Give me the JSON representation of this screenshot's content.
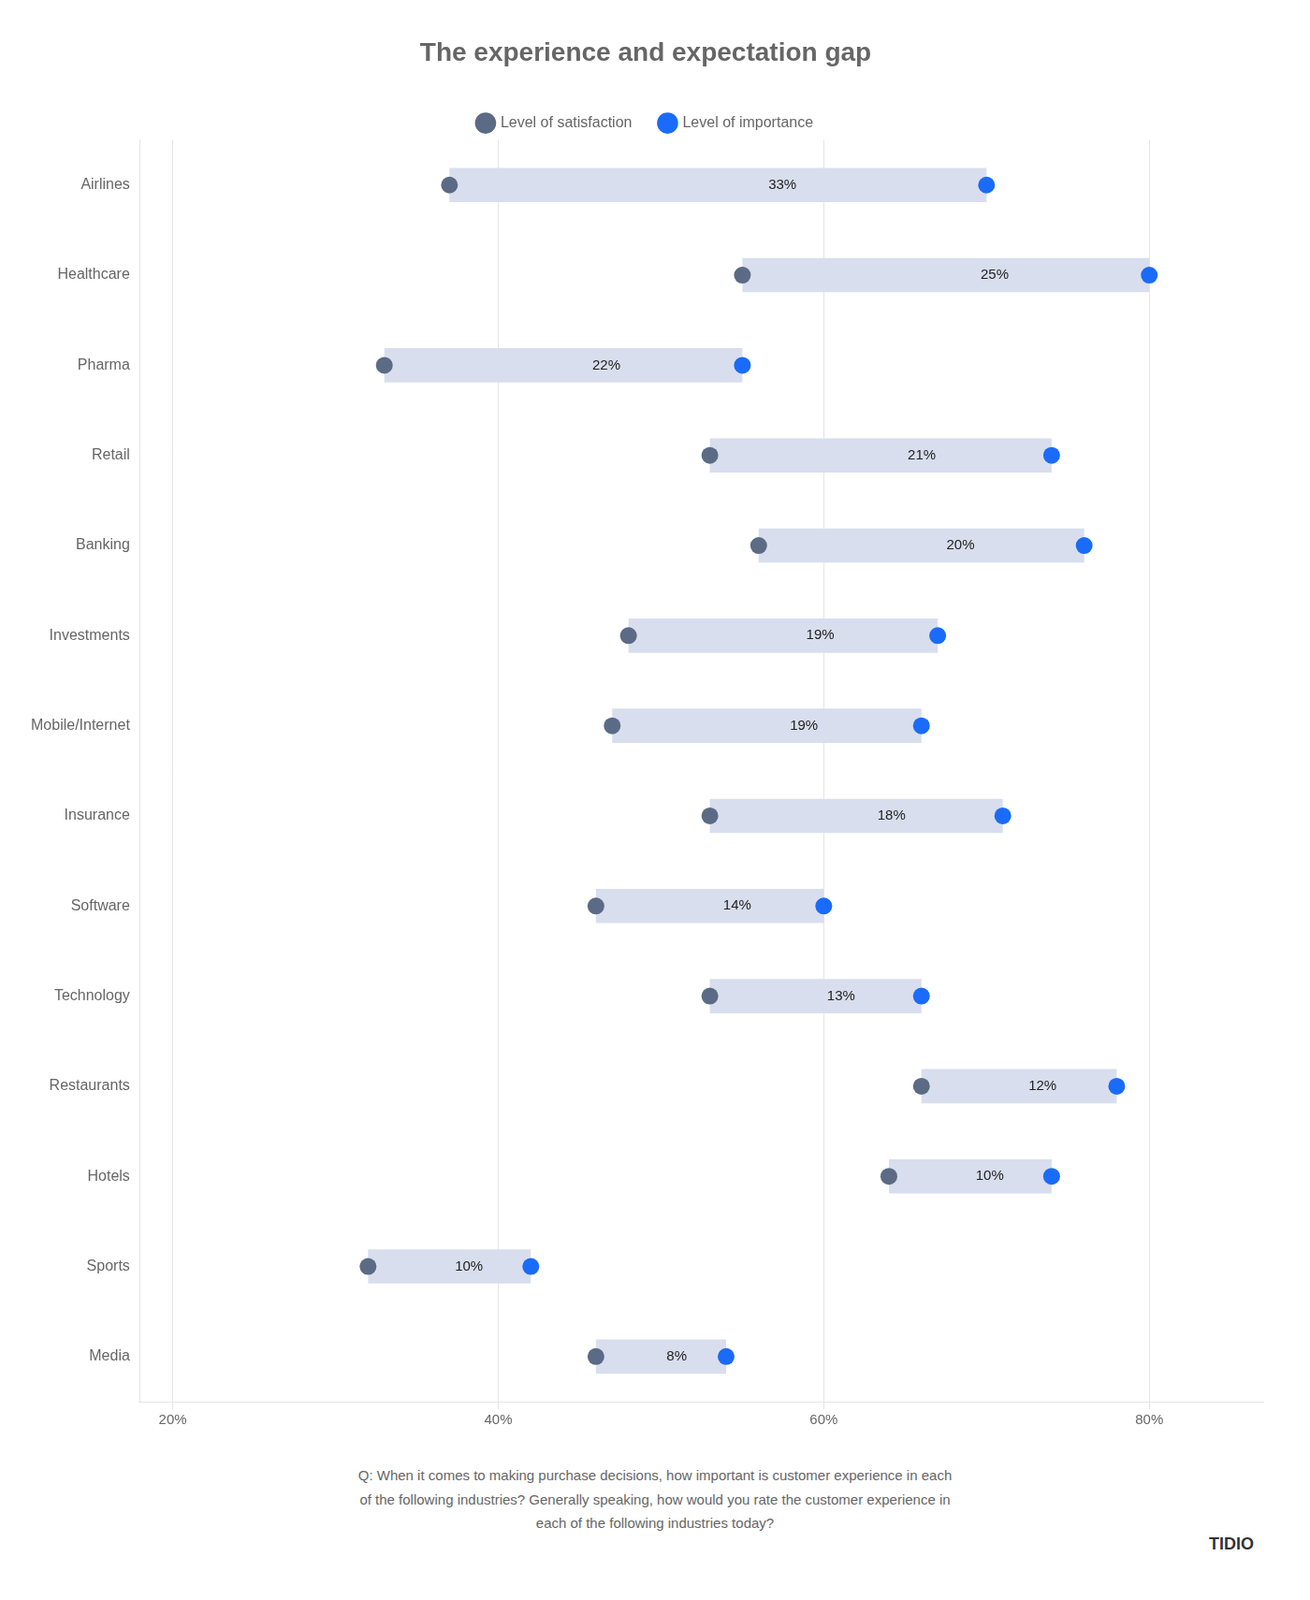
{
  "chart_data": {
    "type": "dumbbell",
    "title": "The experience and expectation gap",
    "orientation": "horizontal",
    "categories": [
      "Airlines",
      "Healthcare",
      "Pharma",
      "Retail",
      "Banking",
      "Investments",
      "Mobile/Internet",
      "Insurance",
      "Software",
      "Technology",
      "Restaurants",
      "Hotels",
      "Sports",
      "Media"
    ],
    "series": [
      {
        "name": "Level of satisfaction",
        "color": "#5b6b85",
        "values": [
          37,
          55,
          33,
          53,
          56,
          48,
          47,
          53,
          46,
          53,
          66,
          64,
          32,
          46
        ]
      },
      {
        "name": "Level of importance",
        "color": "#1a6bfa",
        "values": [
          70,
          80,
          55,
          74,
          76,
          67,
          66,
          71,
          60,
          66,
          78,
          74,
          42,
          54
        ]
      }
    ],
    "range_color": "#d8deed",
    "gaps": [
      33,
      25,
      22,
      21,
      20,
      19,
      19,
      18,
      14,
      13,
      12,
      10,
      10,
      8
    ],
    "gap_labels": [
      "33%",
      "25%",
      "22%",
      "21%",
      "20%",
      "19%",
      "19%",
      "18%",
      "14%",
      "13%",
      "12%",
      "10%",
      "10%",
      "8%"
    ],
    "xlim": [
      18,
      87
    ],
    "xticks": [
      {
        "value": 20,
        "label": "20%"
      },
      {
        "value": 40,
        "label": "40%"
      },
      {
        "value": 60,
        "label": "60%"
      },
      {
        "value": 80,
        "label": "80%"
      }
    ],
    "grid": true,
    "legend": "top",
    "footnote": "Q: When it comes to making purchase decisions, how important is customer experience in each\nof the following industries? Generally speaking, how would you rate the customer experience in\neach of the following industries today?",
    "logo": "TIDIO"
  }
}
